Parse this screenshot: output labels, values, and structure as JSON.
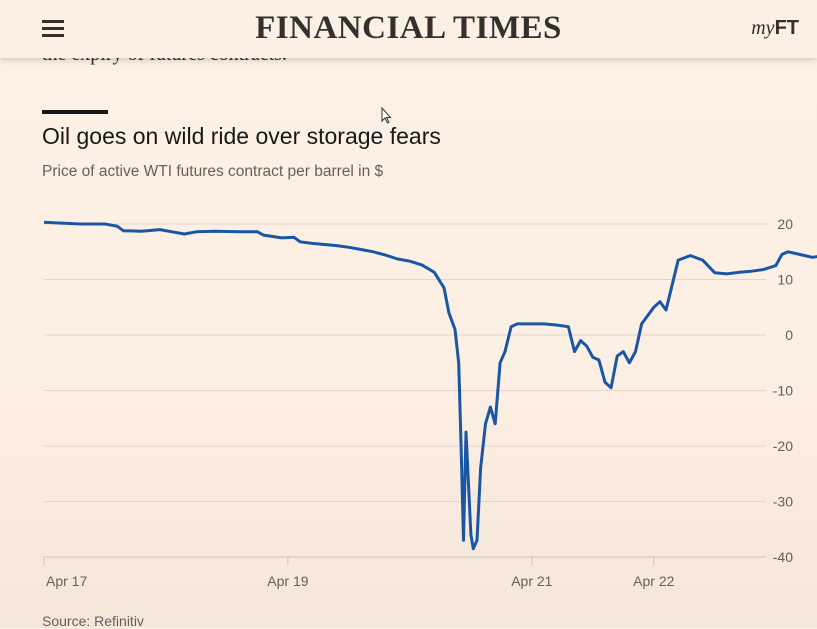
{
  "header": {
    "brand": "FINANCIAL TIMES",
    "myft_my": "my",
    "myft_ft": "FT"
  },
  "article": {
    "prev_text": "the expiry of futures contracts.",
    "source": "Source: Refinitiv"
  },
  "icons": {
    "menu": "hamburger-menu-icon",
    "cursor": "mouse-pointer-icon"
  },
  "colors": {
    "background": "#fcefe3",
    "line": "#1b56a5",
    "grid": "#e2d6cb",
    "text": "#33302e"
  },
  "chart_data": {
    "type": "line",
    "title": "Oil goes on wild ride over storage fears",
    "subtitle": "Price of active WTI futures contract per barrel in $",
    "xlabel": "",
    "ylabel": "",
    "xlim": [
      17,
      22.92
    ],
    "ylim": [
      -40,
      20
    ],
    "yticks": [
      20,
      10,
      0,
      -10,
      -20,
      -30,
      -40
    ],
    "ytick_labels": [
      "20",
      "10",
      "0",
      "-10",
      "-20",
      "-30",
      "-40"
    ],
    "xticks": [
      17,
      19,
      21,
      22
    ],
    "xtick_labels": [
      "Apr 17",
      "Apr 19",
      "Apr 21",
      "Apr 22"
    ],
    "grid": true,
    "legend": "none",
    "series": [
      {
        "color": "#1b56a5",
        "points": [
          [
            17.0,
            20.3
          ],
          [
            17.1,
            20.2
          ],
          [
            17.3,
            20.0
          ],
          [
            17.5,
            20.0
          ],
          [
            17.6,
            19.6
          ],
          [
            17.65,
            18.8
          ],
          [
            17.8,
            18.7
          ],
          [
            17.95,
            19.0
          ],
          [
            18.05,
            18.6
          ],
          [
            18.15,
            18.2
          ],
          [
            18.25,
            18.6
          ],
          [
            18.4,
            18.7
          ],
          [
            18.6,
            18.6
          ],
          [
            18.75,
            18.6
          ],
          [
            18.8,
            18.0
          ],
          [
            18.95,
            17.5
          ],
          [
            19.05,
            17.6
          ],
          [
            19.1,
            16.8
          ],
          [
            19.2,
            16.5
          ],
          [
            19.3,
            16.3
          ],
          [
            19.4,
            16.1
          ],
          [
            19.5,
            15.8
          ],
          [
            19.6,
            15.4
          ],
          [
            19.7,
            15.0
          ],
          [
            19.8,
            14.4
          ],
          [
            19.9,
            13.7
          ],
          [
            20.0,
            13.3
          ],
          [
            20.1,
            12.6
          ],
          [
            20.2,
            11.3
          ],
          [
            20.28,
            8.5
          ],
          [
            20.32,
            4.0
          ],
          [
            20.37,
            1.0
          ],
          [
            20.4,
            -5.0
          ],
          [
            20.42,
            -20.0
          ],
          [
            20.44,
            -37.0
          ],
          [
            20.46,
            -17.5
          ],
          [
            20.5,
            -36.0
          ],
          [
            20.52,
            -38.5
          ],
          [
            20.55,
            -37.0
          ],
          [
            20.58,
            -24.0
          ],
          [
            20.62,
            -16.0
          ],
          [
            20.66,
            -13.0
          ],
          [
            20.7,
            -16.0
          ],
          [
            20.74,
            -5.0
          ],
          [
            20.78,
            -3.0
          ],
          [
            20.83,
            1.5
          ],
          [
            20.88,
            2.0
          ],
          [
            21.0,
            2.0
          ],
          [
            21.1,
            2.0
          ],
          [
            21.2,
            1.8
          ],
          [
            21.3,
            1.5
          ],
          [
            21.35,
            -3.0
          ],
          [
            21.4,
            -1.0
          ],
          [
            21.45,
            -2.0
          ],
          [
            21.5,
            -4.0
          ],
          [
            21.55,
            -4.5
          ],
          [
            21.6,
            -8.5
          ],
          [
            21.65,
            -9.5
          ],
          [
            21.7,
            -3.8
          ],
          [
            21.75,
            -3.0
          ],
          [
            21.8,
            -5.0
          ],
          [
            21.85,
            -3.0
          ],
          [
            21.9,
            2.0
          ],
          [
            21.95,
            3.5
          ],
          [
            22.0,
            5.0
          ],
          [
            22.05,
            6.0
          ],
          [
            22.1,
            4.5
          ],
          [
            22.15,
            9.0
          ],
          [
            22.2,
            13.5
          ],
          [
            22.3,
            14.3
          ],
          [
            22.4,
            13.5
          ],
          [
            22.5,
            11.2
          ],
          [
            22.6,
            11.0
          ],
          [
            22.7,
            11.3
          ],
          [
            22.8,
            11.5
          ],
          [
            22.9,
            11.8
          ],
          [
            23.0,
            12.5
          ],
          [
            23.05,
            14.5
          ],
          [
            23.1,
            15.0
          ],
          [
            23.2,
            14.5
          ],
          [
            23.3,
            14.0
          ],
          [
            23.4,
            14.3
          ]
        ]
      }
    ]
  }
}
